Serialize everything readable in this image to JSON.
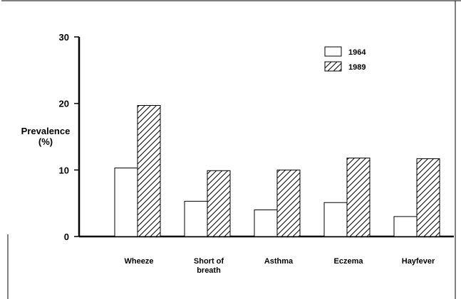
{
  "chart_data": {
    "type": "bar",
    "title": "",
    "xlabel": "",
    "ylabel_lines": [
      "Prevalence",
      "(%)"
    ],
    "ylim": [
      0,
      30
    ],
    "yticks": [
      "0",
      "10",
      "20",
      "30"
    ],
    "grid": false,
    "legend_position": "top-right",
    "categories": [
      [
        "Wheeze"
      ],
      [
        "Short of",
        "breath"
      ],
      [
        "Asthma"
      ],
      [
        "Eczema"
      ],
      [
        "Hayfever"
      ]
    ],
    "series": [
      {
        "name": "1964",
        "values": [
          10.3,
          5.3,
          4.0,
          5.1,
          3.0
        ],
        "fill": "plain",
        "color": "#ffffff"
      },
      {
        "name": "1989",
        "values": [
          19.7,
          9.9,
          10.0,
          11.8,
          11.7
        ],
        "fill": "hatched",
        "color": "#ffffff"
      }
    ]
  }
}
